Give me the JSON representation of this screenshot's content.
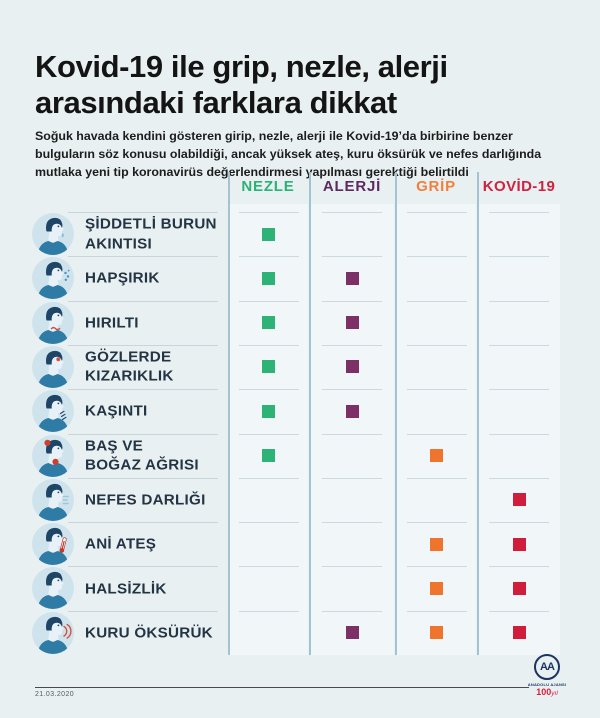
{
  "title": {
    "line1": "Kovid-19 ile grip, nezle, alerji",
    "line2": "arasındaki farklara dikkat"
  },
  "subtitle": "Soğuk havada kendini gösteren girip, nezle, alerji ile Kovid-19’da birbirine benzer bulguların söz konusu olabildiği, ancak yüksek ateş, kuru öksürük ve nefes darlığında mutlaka yeni tip koronavirüs değerlendirmesi yapılması gerektiği belirtildi",
  "table": {
    "columns": [
      {
        "id": "nezle",
        "label": "NEZLE",
        "color": "#2bb278",
        "square_color": "#2eb377"
      },
      {
        "id": "alerji",
        "label": "ALERJİ",
        "color": "#5c2a60",
        "square_color": "#7c3066"
      },
      {
        "id": "grip",
        "label": "GRİP",
        "color": "#f1803f",
        "square_color": "#ef742c"
      },
      {
        "id": "kovid19",
        "label": "KOVİD-19",
        "color": "#cf2240",
        "square_color": "#d01d3c"
      }
    ],
    "rows": [
      {
        "label_lines": [
          "ŞİDDETLİ BURUN",
          "AKINTISI"
        ],
        "icon": "runny-nose",
        "marks": [
          true,
          false,
          false,
          false
        ]
      },
      {
        "label_lines": [
          "HAPŞIRIK"
        ],
        "icon": "sneeze",
        "marks": [
          true,
          true,
          false,
          false
        ]
      },
      {
        "label_lines": [
          "HIRILTI"
        ],
        "icon": "wheeze",
        "marks": [
          true,
          true,
          false,
          false
        ]
      },
      {
        "label_lines": [
          "GÖZLERDE",
          "KIZARIKLIK"
        ],
        "icon": "red-eyes",
        "marks": [
          true,
          true,
          false,
          false
        ]
      },
      {
        "label_lines": [
          "KAŞINTI"
        ],
        "icon": "itch",
        "marks": [
          true,
          true,
          false,
          false
        ]
      },
      {
        "label_lines": [
          "BAŞ VE",
          "BOĞAZ AĞRISI"
        ],
        "icon": "head-throat-ache",
        "marks": [
          true,
          false,
          true,
          false
        ]
      },
      {
        "label_lines": [
          "NEFES DARLIĞI"
        ],
        "icon": "short-breath",
        "marks": [
          false,
          false,
          false,
          true
        ]
      },
      {
        "label_lines": [
          "ANİ ATEŞ"
        ],
        "icon": "fever",
        "marks": [
          false,
          false,
          true,
          true
        ]
      },
      {
        "label_lines": [
          "HALSİZLİK"
        ],
        "icon": "fatigue",
        "marks": [
          false,
          false,
          true,
          true
        ]
      },
      {
        "label_lines": [
          "KURU ÖKSÜRÜK"
        ],
        "icon": "dry-cough",
        "marks": [
          false,
          true,
          true,
          true
        ]
      }
    ]
  },
  "footer": {
    "date": "21.03.2020",
    "agency_initials": "AA",
    "agency_name": "ANADOLU AJANSI",
    "anniversary_number": "100",
    "anniversary_word": "yıl"
  },
  "chart_data": {
    "type": "table",
    "title": "Kovid-19 ile grip, nezle, alerji arasındaki farklara dikkat",
    "columns": [
      "NEZLE",
      "ALERJİ",
      "GRİP",
      "KOVİD-19"
    ],
    "column_colors": [
      "#2eb377",
      "#7c3066",
      "#ef742c",
      "#d01d3c"
    ],
    "rows": [
      "ŞİDDETLİ BURUN AKINTISI",
      "HAPŞIRIK",
      "HIRILTI",
      "GÖZLERDE KIZARIKLIK",
      "KAŞINTI",
      "BAŞ VE BOĞAZ AĞRISI",
      "NEFES DARLIĞI",
      "ANİ ATEŞ",
      "HALSİZLİK",
      "KURU ÖKSÜRÜK"
    ],
    "matrix": [
      [
        1,
        0,
        0,
        0
      ],
      [
        1,
        1,
        0,
        0
      ],
      [
        1,
        1,
        0,
        0
      ],
      [
        1,
        1,
        0,
        0
      ],
      [
        1,
        1,
        0,
        0
      ],
      [
        1,
        0,
        1,
        0
      ],
      [
        0,
        0,
        0,
        1
      ],
      [
        0,
        0,
        1,
        1
      ],
      [
        0,
        0,
        1,
        1
      ],
      [
        0,
        1,
        1,
        1
      ]
    ],
    "legend_position": "top",
    "grid": "row-separators"
  }
}
